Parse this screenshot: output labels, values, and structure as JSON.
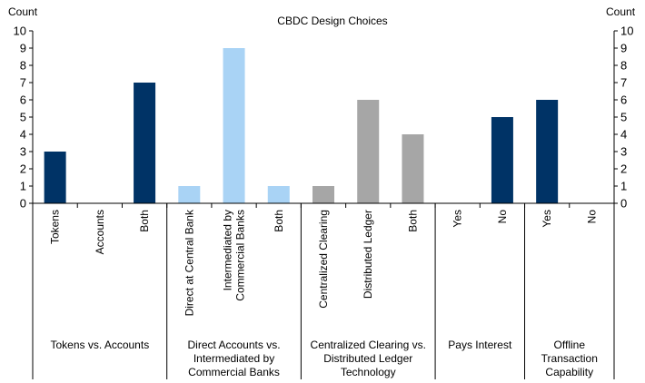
{
  "chart_data": {
    "type": "bar",
    "title": "CBDC Design Choices",
    "ylabel_left": "Count",
    "ylabel_right": "Count",
    "ylim": [
      0,
      10
    ],
    "yticks": [
      0,
      1,
      2,
      3,
      4,
      5,
      6,
      7,
      8,
      9,
      10
    ],
    "grid": false,
    "colors": {
      "dark": "#003366",
      "light": "#a9d3f5",
      "gray": "#a6a6a6"
    },
    "groups": [
      {
        "label": [
          "Tokens vs. Accounts"
        ],
        "color": "dark",
        "categories": [
          {
            "label": [
              "Tokens"
            ],
            "value": 3
          },
          {
            "label": [
              "Accounts"
            ],
            "value": 0
          },
          {
            "label": [
              "Both"
            ],
            "value": 7
          }
        ]
      },
      {
        "label": [
          "Direct Accounts vs.",
          "Intermediated by",
          "Commercial Banks"
        ],
        "color": "light",
        "categories": [
          {
            "label": [
              "Direct at Central Bank"
            ],
            "value": 1
          },
          {
            "label": [
              "Intermediated by",
              "Commercial Banks"
            ],
            "value": 9
          },
          {
            "label": [
              "Both"
            ],
            "value": 1
          }
        ]
      },
      {
        "label": [
          "Centralized Clearing vs.",
          "Distributed Ledger",
          "Technology"
        ],
        "color": "gray",
        "categories": [
          {
            "label": [
              "Centralized Clearing"
            ],
            "value": 1
          },
          {
            "label": [
              "Distributed Ledger"
            ],
            "value": 6
          },
          {
            "label": [
              "Both"
            ],
            "value": 4
          }
        ]
      },
      {
        "label": [
          "Pays Interest"
        ],
        "color": "dark",
        "categories": [
          {
            "label": [
              "Yes"
            ],
            "value": 0
          },
          {
            "label": [
              "No"
            ],
            "value": 5
          }
        ]
      },
      {
        "label": [
          "Offline",
          "Transaction",
          "Capability"
        ],
        "color": "dark",
        "categories": [
          {
            "label": [
              "Yes"
            ],
            "value": 6
          },
          {
            "label": [
              "No"
            ],
            "value": 0
          }
        ]
      }
    ]
  }
}
